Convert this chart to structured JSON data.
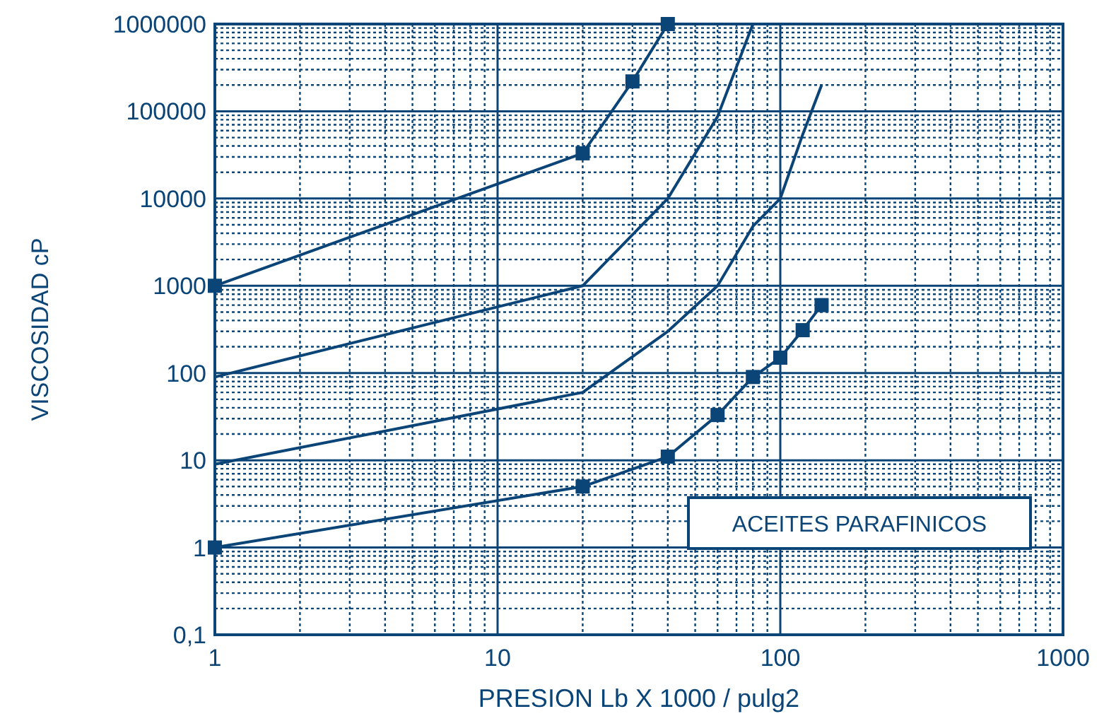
{
  "chart_data": {
    "type": "line",
    "xlabel": "PRESION Lb X 1000 / pulg2",
    "ylabel": "VISCOSIDAD cP",
    "log": "xy",
    "grid": true,
    "xlim": [
      1,
      1000
    ],
    "xticks": [
      1,
      {
        "value": 2,
        "label": null
      },
      {
        "value": 3,
        "label": null
      },
      {
        "value": 4,
        "label": null
      },
      {
        "value": 5,
        "label": null
      },
      {
        "value": 6,
        "label": null
      },
      {
        "value": 7,
        "label": null
      },
      {
        "value": 8,
        "label": null
      },
      {
        "value": 9,
        "label": null
      },
      10,
      {
        "value": 20,
        "label": null
      },
      {
        "value": 30,
        "label": null
      },
      {
        "value": 40,
        "label": null
      },
      {
        "value": 50,
        "label": null
      },
      {
        "value": 60,
        "label": null
      },
      {
        "value": 70,
        "label": null
      },
      {
        "value": 80,
        "label": null
      },
      {
        "value": 90,
        "label": null
      },
      100,
      {
        "value": 200,
        "label": null
      },
      {
        "value": 300,
        "label": null
      },
      {
        "value": 400,
        "label": null
      },
      {
        "value": 500,
        "label": null
      },
      {
        "value": 600,
        "label": null
      },
      {
        "value": 700,
        "label": null
      },
      {
        "value": 800,
        "label": null
      },
      {
        "value": 900,
        "label": null
      },
      1000
    ],
    "ylim": [
      0.1,
      1000000
    ],
    "yticks": [
      {
        "value": 0.1,
        "label": "0,1"
      },
      {
        "value": 0.2,
        "label": null
      },
      {
        "value": 0.3,
        "label": null
      },
      {
        "value": 0.4,
        "label": null
      },
      {
        "value": 0.5,
        "label": null
      },
      {
        "value": 0.6,
        "label": null
      },
      {
        "value": 0.7,
        "label": null
      },
      {
        "value": 0.8,
        "label": null
      },
      {
        "value": 0.9,
        "label": null
      },
      1,
      {
        "value": 2,
        "label": null
      },
      {
        "value": 3,
        "label": null
      },
      {
        "value": 4,
        "label": null
      },
      {
        "value": 5,
        "label": null
      },
      {
        "value": 6,
        "label": null
      },
      {
        "value": 7,
        "label": null
      },
      {
        "value": 8,
        "label": null
      },
      {
        "value": 9,
        "label": null
      },
      10,
      {
        "value": 20,
        "label": null
      },
      {
        "value": 30,
        "label": null
      },
      {
        "value": 40,
        "label": null
      },
      {
        "value": 50,
        "label": null
      },
      {
        "value": 60,
        "label": null
      },
      {
        "value": 70,
        "label": null
      },
      {
        "value": 80,
        "label": null
      },
      {
        "value": 90,
        "label": null
      },
      100,
      {
        "value": 200,
        "label": null
      },
      {
        "value": 300,
        "label": null
      },
      {
        "value": 400,
        "label": null
      },
      {
        "value": 500,
        "label": null
      },
      {
        "value": 600,
        "label": null
      },
      {
        "value": 700,
        "label": null
      },
      {
        "value": 800,
        "label": null
      },
      {
        "value": 900,
        "label": null
      },
      1000,
      {
        "value": 2000,
        "label": null
      },
      {
        "value": 3000,
        "label": null
      },
      {
        "value": 4000,
        "label": null
      },
      {
        "value": 5000,
        "label": null
      },
      {
        "value": 6000,
        "label": null
      },
      {
        "value": 7000,
        "label": null
      },
      {
        "value": 8000,
        "label": null
      },
      {
        "value": 9000,
        "label": null
      },
      10000,
      {
        "value": 20000,
        "label": null
      },
      {
        "value": 30000,
        "label": null
      },
      {
        "value": 40000,
        "label": null
      },
      {
        "value": 50000,
        "label": null
      },
      {
        "value": 60000,
        "label": null
      },
      {
        "value": 70000,
        "label": null
      },
      {
        "value": 80000,
        "label": null
      },
      {
        "value": 90000,
        "label": null
      },
      100000,
      {
        "value": 200000,
        "label": null
      },
      {
        "value": 300000,
        "label": null
      },
      {
        "value": 400000,
        "label": null
      },
      {
        "value": 500000,
        "label": null
      },
      {
        "value": 600000,
        "label": null
      },
      {
        "value": 700000,
        "label": null
      },
      {
        "value": 800000,
        "label": null
      },
      {
        "value": 900000,
        "label": null
      },
      1000000
    ],
    "annotations": [
      "ACEITES PARAFINICOS"
    ],
    "series": [
      {
        "color": "#0b4477",
        "marker": "square",
        "x": [
          1,
          20,
          40,
          60,
          80,
          100,
          120,
          140
        ],
        "values": [
          1,
          5,
          11,
          33,
          90,
          150,
          310,
          600
        ]
      },
      {
        "color": "#0b4477",
        "marker": "none",
        "x": [
          1,
          20,
          40,
          60,
          80,
          100,
          120,
          140
        ],
        "values": [
          9,
          60,
          300,
          1000,
          4800,
          10000,
          54000,
          200000
        ]
      },
      {
        "color": "#0b4477",
        "marker": "none",
        "x": [
          1,
          20,
          40,
          60,
          80
        ],
        "values": [
          90,
          1000,
          10000,
          87000,
          1000000
        ]
      },
      {
        "color": "#0b4477",
        "marker": "square",
        "x": [
          1,
          20,
          30,
          40
        ],
        "values": [
          1000,
          33000,
          220000,
          1000000
        ]
      }
    ]
  }
}
